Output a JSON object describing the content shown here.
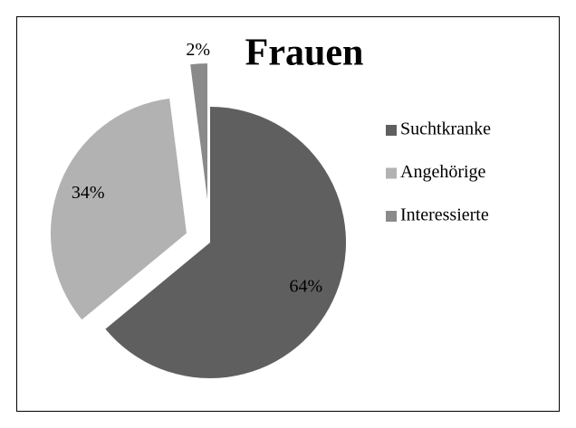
{
  "chart_data": {
    "type": "pie",
    "title": "Frauen",
    "categories": [
      "Suchtkranke",
      "Angehörige",
      "Interessierte"
    ],
    "values": [
      64,
      34,
      2
    ],
    "value_labels": [
      "64%",
      "34%",
      "2%"
    ],
    "colors": [
      "#5f5f5f",
      "#b2b2b2",
      "#8a8a8a"
    ],
    "legend": "right"
  }
}
